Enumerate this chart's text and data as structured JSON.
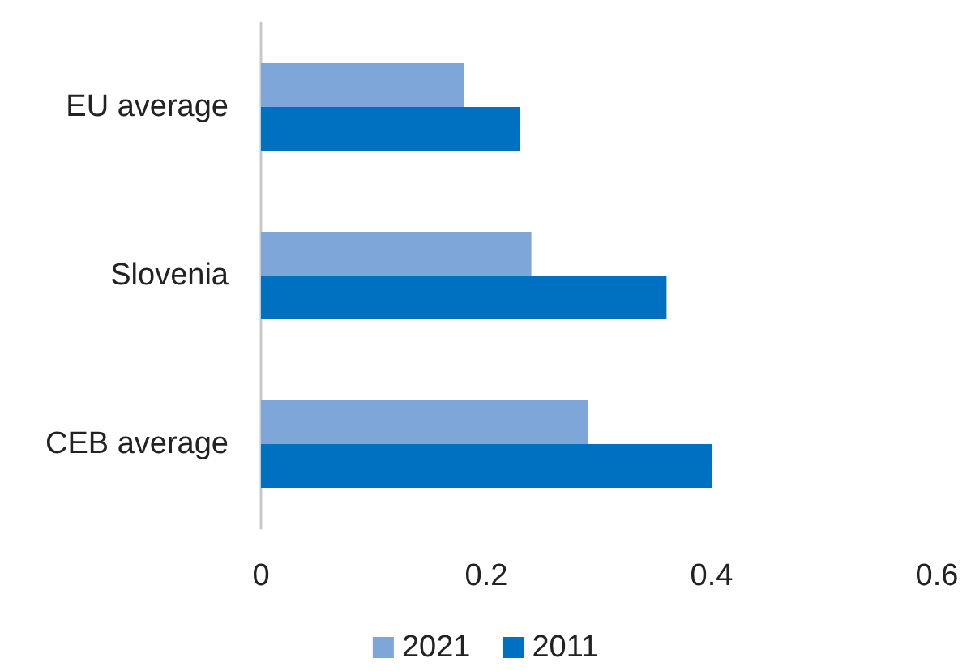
{
  "chart_data": {
    "type": "bar",
    "orientation": "horizontal",
    "categories": [
      "EU average",
      "Slovenia",
      "CEB average"
    ],
    "series": [
      {
        "name": "2021",
        "color": "#7fa6d8",
        "values": [
          0.18,
          0.24,
          0.29
        ]
      },
      {
        "name": "2011",
        "color": "#0070c0",
        "values": [
          0.23,
          0.36,
          0.4
        ]
      }
    ],
    "xlim": [
      0,
      0.6
    ],
    "xticks": [
      0,
      0.2,
      0.4,
      0.6
    ],
    "grid": false,
    "legend": "bottom"
  }
}
